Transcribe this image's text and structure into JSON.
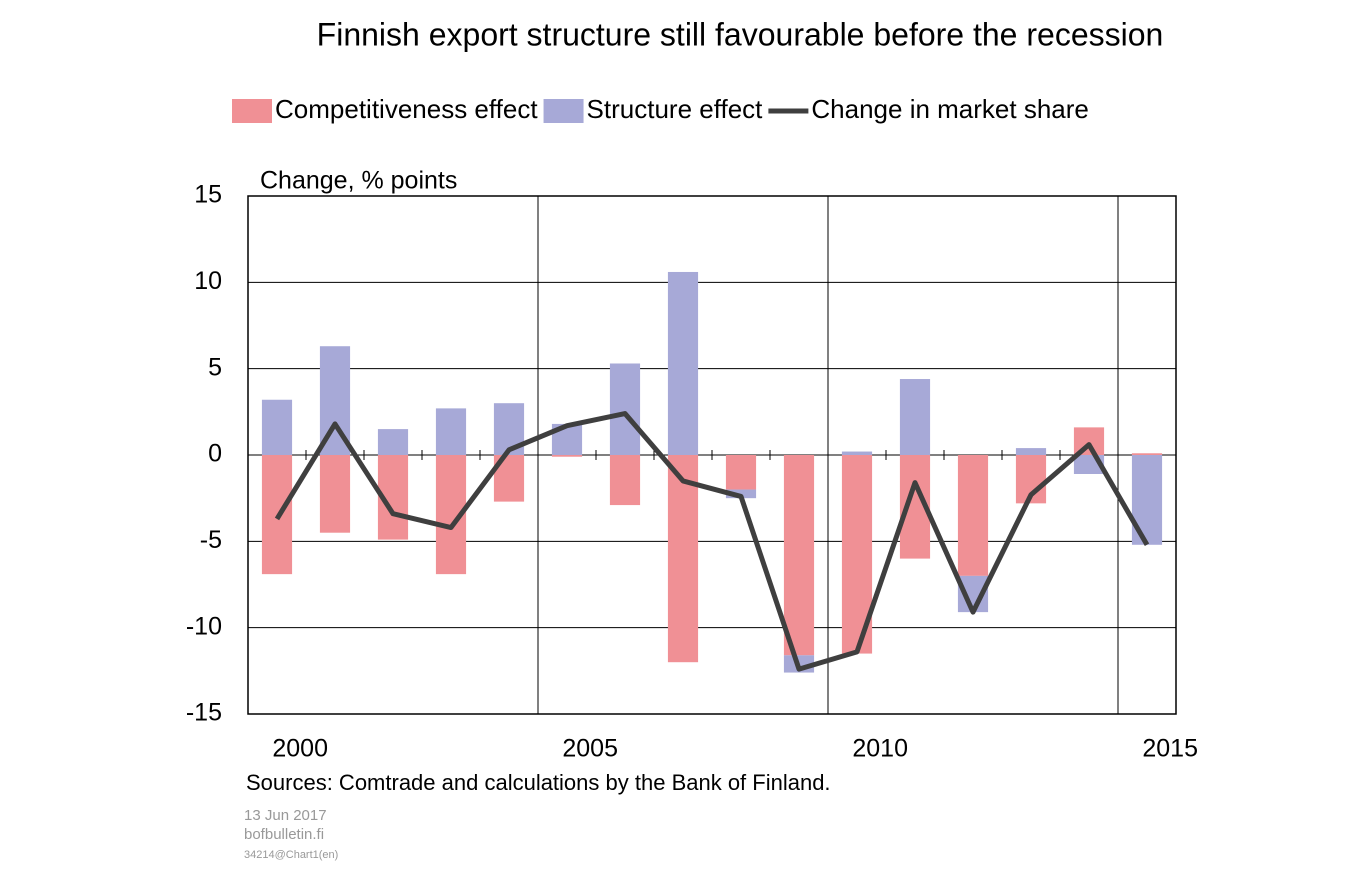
{
  "chart_data": {
    "type": "bar",
    "title": "Finnish export structure still favourable before the recession",
    "y_axis_label": "Change, % points",
    "categories": [
      "2000",
      null,
      null,
      null,
      null,
      "2005",
      null,
      null,
      null,
      null,
      "2010",
      null,
      null,
      null,
      null,
      "2015"
    ],
    "series": [
      {
        "name": "Competitiveness effect",
        "type": "bar",
        "color": "#f09095",
        "values": [
          -6.9,
          -4.5,
          -4.9,
          -6.9,
          -2.7,
          -0.1,
          -2.9,
          -12.0,
          -2.0,
          -11.6,
          -11.5,
          -6.0,
          -7.0,
          -2.8,
          1.6,
          0.1
        ]
      },
      {
        "name": "Structure effect",
        "type": "bar",
        "color": "#a7a9d7",
        "values": [
          3.2,
          6.3,
          1.5,
          2.7,
          3.0,
          1.8,
          5.3,
          10.6,
          -0.5,
          -1.0,
          0.2,
          4.4,
          -2.1,
          0.4,
          -1.1,
          -5.2
        ]
      },
      {
        "name": "Change in market share",
        "type": "line",
        "color": "#3f3f3f",
        "values": [
          -3.7,
          1.8,
          -3.4,
          -4.2,
          0.3,
          1.7,
          2.4,
          -1.5,
          -2.4,
          -12.4,
          -11.4,
          -1.6,
          -9.1,
          -2.3,
          0.6,
          -5.2
        ]
      }
    ],
    "ylim": [
      -15,
      15
    ],
    "yticks": [
      -15,
      -10,
      -5,
      0,
      5,
      10,
      15
    ],
    "grid": true,
    "stacked": true,
    "source": "Sources: Comtrade and calculations by the Bank of Finland.",
    "date": "13 Jun 2017",
    "site": "bofbulletin.fi",
    "code": "34214@Chart1(en)"
  }
}
